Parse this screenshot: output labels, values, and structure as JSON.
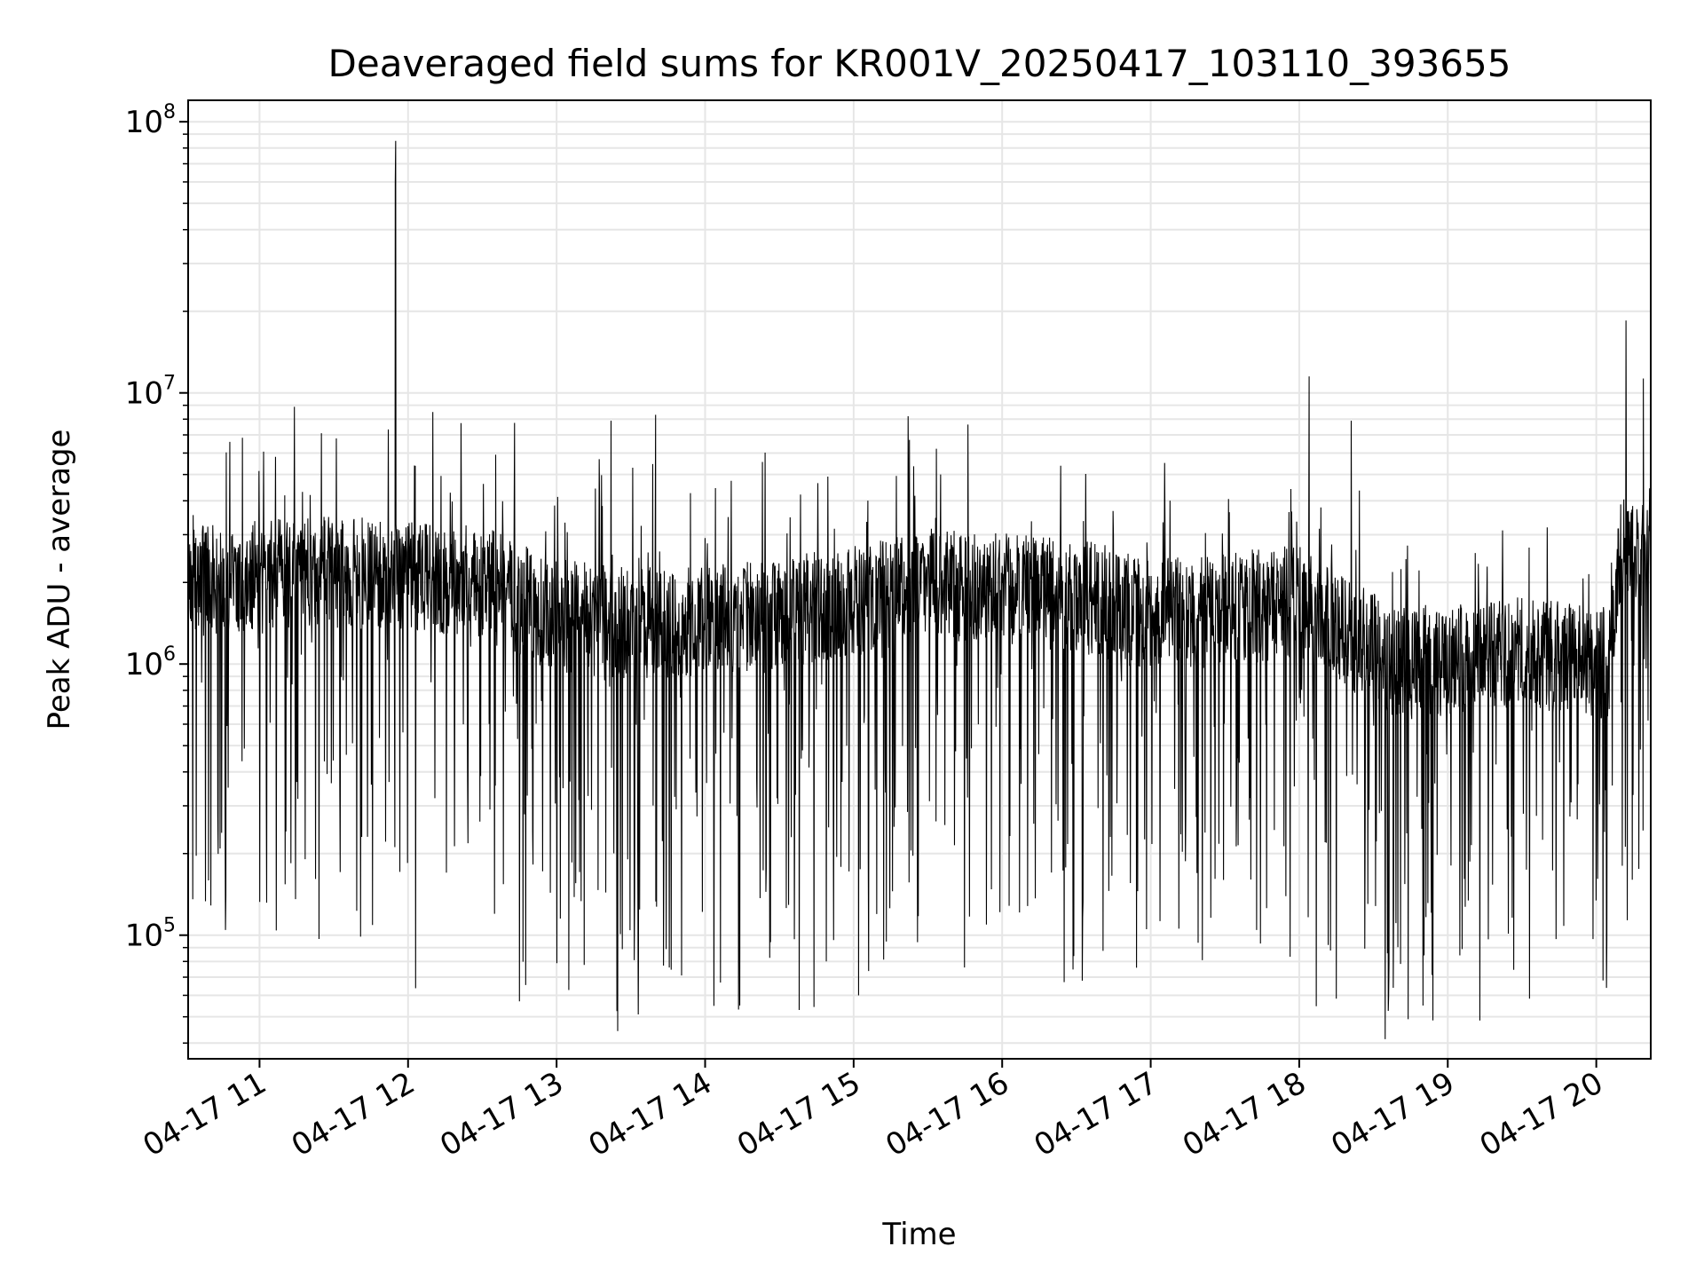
{
  "chart_data": {
    "type": "line",
    "title": "Deaveraged field sums for KR001V_20250417_103110_393655",
    "xlabel": "Time",
    "ylabel": "Peak ADU - average",
    "x_scale": "time",
    "y_scale": "log",
    "xlim": [
      "2025-04-17T10:31:10",
      "2025-04-17T20:22:00"
    ],
    "ylim": [
      35000,
      120000000
    ],
    "grid": true,
    "legend": "none",
    "line_color": "#000000",
    "grid_color": "#e6e6e6",
    "x_ticks": [
      {
        "t": "2025-04-17T11:00:00",
        "label": "04-17 11"
      },
      {
        "t": "2025-04-17T12:00:00",
        "label": "04-17 12"
      },
      {
        "t": "2025-04-17T13:00:00",
        "label": "04-17 13"
      },
      {
        "t": "2025-04-17T14:00:00",
        "label": "04-17 14"
      },
      {
        "t": "2025-04-17T15:00:00",
        "label": "04-17 15"
      },
      {
        "t": "2025-04-17T16:00:00",
        "label": "04-17 16"
      },
      {
        "t": "2025-04-17T17:00:00",
        "label": "04-17 17"
      },
      {
        "t": "2025-04-17T18:00:00",
        "label": "04-17 18"
      },
      {
        "t": "2025-04-17T19:00:00",
        "label": "04-17 19"
      },
      {
        "t": "2025-04-17T20:00:00",
        "label": "04-17 20"
      }
    ],
    "y_ticks": [
      {
        "value": 100000,
        "base": "10",
        "exp": "5"
      },
      {
        "value": 1000000,
        "base": "10",
        "exp": "6"
      },
      {
        "value": 10000000,
        "base": "10",
        "exp": "7"
      },
      {
        "value": 100000000,
        "base": "10",
        "exp": "8"
      }
    ],
    "series": [
      {
        "baseline_profile": [
          {
            "t": "2025-04-17T10:31:10",
            "median": 2000000
          },
          {
            "t": "2025-04-17T11:30:00",
            "median": 2200000
          },
          {
            "t": "2025-04-17T12:30:00",
            "median": 2000000
          },
          {
            "t": "2025-04-17T13:00:00",
            "median": 1500000
          },
          {
            "t": "2025-04-17T13:40:00",
            "median": 1400000
          },
          {
            "t": "2025-04-17T14:30:00",
            "median": 1500000
          },
          {
            "t": "2025-04-17T15:30:00",
            "median": 2000000
          },
          {
            "t": "2025-04-17T16:30:00",
            "median": 1800000
          },
          {
            "t": "2025-04-17T17:00:00",
            "median": 1500000
          },
          {
            "t": "2025-04-17T18:00:00",
            "median": 1700000
          },
          {
            "t": "2025-04-17T18:40:00",
            "median": 1000000
          },
          {
            "t": "2025-04-17T19:30:00",
            "median": 1100000
          },
          {
            "t": "2025-04-17T20:05:00",
            "median": 1000000
          },
          {
            "t": "2025-04-17T20:10:00",
            "median": 2500000
          },
          {
            "t": "2025-04-17T20:22:00",
            "median": 2600000
          }
        ],
        "peaks": [
          {
            "t": "2025-04-17T11:55:00",
            "y": 85000000
          },
          {
            "t": "2025-04-17T11:54:50",
            "y": 60000000
          },
          {
            "t": "2025-04-17T12:10:00",
            "y": 8500000
          },
          {
            "t": "2025-04-17T13:22:00",
            "y": 7900000
          },
          {
            "t": "2025-04-17T13:40:00",
            "y": 8300000
          },
          {
            "t": "2025-04-17T15:22:00",
            "y": 8200000
          },
          {
            "t": "2025-04-17T18:04:00",
            "y": 11500000
          },
          {
            "t": "2025-04-17T18:21:00",
            "y": 7900000
          },
          {
            "t": "2025-04-17T20:12:00",
            "y": 18500000
          },
          {
            "t": "2025-04-17T20:19:00",
            "y": 11300000
          },
          {
            "t": "2025-04-17T11:25:00",
            "y": 7100000
          },
          {
            "t": "2025-04-17T10:48:00",
            "y": 6600000
          }
        ],
        "troughs": [
          {
            "t": "2025-04-17T13:33:00",
            "y": 51000.0
          },
          {
            "t": "2025-04-17T18:44:00",
            "y": 49000
          },
          {
            "t": "2025-04-17T18:54:00",
            "y": 48500
          },
          {
            "t": "2025-04-17T14:14:00",
            "y": 55000
          },
          {
            "t": "2025-04-17T14:38:00",
            "y": 53000
          },
          {
            "t": "2025-04-17T12:45:00",
            "y": 57000
          },
          {
            "t": "2025-04-17T15:02:00",
            "y": 60000
          },
          {
            "t": "2025-04-17T18:50:00",
            "y": 55000
          }
        ]
      }
    ]
  }
}
